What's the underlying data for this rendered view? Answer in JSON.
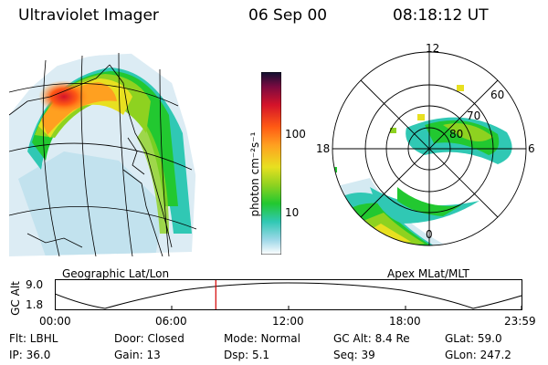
{
  "header": {
    "instrument": "Ultraviolet Imager",
    "date": "06 Sep 00",
    "time": "08:18:12 UT"
  },
  "colorbar": {
    "unit_label": "photon cm⁻²s⁻¹",
    "ticks": [
      "100",
      "10"
    ],
    "colors_top_to_bottom": [
      "#101030",
      "#7a0a40",
      "#d4132a",
      "#ff5a14",
      "#ffa020",
      "#e8e020",
      "#8ed220",
      "#22c830",
      "#30c8b4",
      "#9ed8e8",
      "#ffffff"
    ]
  },
  "geographic_panel": {
    "label": "Geographic Lat/Lon"
  },
  "polar_panel": {
    "label": "Apex MLat/MLT",
    "mlt_labels": {
      "top": "12",
      "left": "18",
      "right": "6",
      "bottom": "0"
    },
    "lat_labels": [
      "60",
      "70",
      "80"
    ]
  },
  "altitude_plot": {
    "ylabel": "GC Alt",
    "y_ticks": [
      "9.0",
      "1.8"
    ],
    "x_ticks": [
      "00:00",
      "06:00",
      "12:00",
      "18:00",
      "23:59"
    ],
    "current_time_fraction": 0.345
  },
  "info": {
    "flt": "Flt: LBHL",
    "ip": "IP: 36.0",
    "door": "Door: Closed",
    "gain": "Gain: 13",
    "mode": "Mode: Normal",
    "dsp": "Dsp:   5.1",
    "gcalt": "GC Alt: 8.4 Re",
    "seq": "Seq: 39",
    "glat": "GLat:  59.0",
    "glon": "GLon: 247.2"
  }
}
